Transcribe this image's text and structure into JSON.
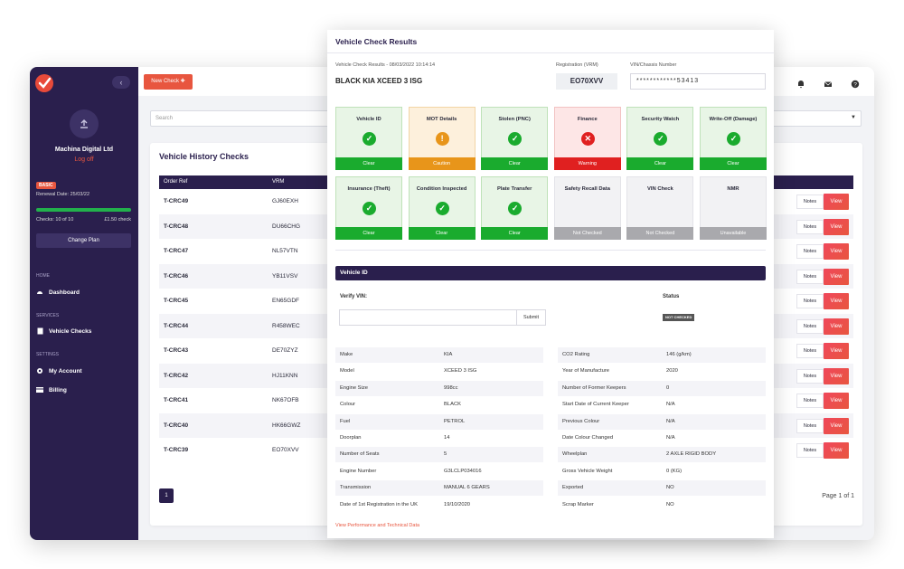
{
  "sidebar": {
    "company": "Machina Digital Ltd",
    "logoff": "Log off",
    "plan_badge": "BASIC",
    "renewal": "Renewal Date: 25/03/22",
    "checks_used": "Checks: 10 of 10",
    "price": "£1.50 check",
    "usage_fraction": 1.0,
    "change_plan": "Change Plan",
    "sections": {
      "home": "HOME",
      "services": "SERVICES",
      "settings": "SETTINGS"
    },
    "items": {
      "dashboard": "Dashboard",
      "vehicle_checks": "Vehicle Checks",
      "my_account": "My Account",
      "billing": "Billing"
    }
  },
  "topbar": {
    "new_check": "New Check"
  },
  "search": {
    "placeholder": "Search"
  },
  "history": {
    "title": "Vehicle History Checks",
    "columns": [
      "Order Ref",
      "VRM"
    ],
    "notes_label": "Notes",
    "view_label": "View",
    "rows": [
      {
        "ref": "T-CRC49",
        "vrm": "GJ60EXH"
      },
      {
        "ref": "T-CRC48",
        "vrm": "DU66CHG"
      },
      {
        "ref": "T-CRC47",
        "vrm": "NL57VTN"
      },
      {
        "ref": "T-CRC46",
        "vrm": "YB11VSV"
      },
      {
        "ref": "T-CRC45",
        "vrm": "EN65GDF"
      },
      {
        "ref": "T-CRC44",
        "vrm": "R458WEC"
      },
      {
        "ref": "T-CRC43",
        "vrm": "DE70ZYZ"
      },
      {
        "ref": "T-CRC42",
        "vrm": "HJ11KNN"
      },
      {
        "ref": "T-CRC41",
        "vrm": "NK67OFB"
      },
      {
        "ref": "T-CRC40",
        "vrm": "HK66GWZ"
      },
      {
        "ref": "T-CRC39",
        "vrm": "EO70XVV"
      }
    ],
    "current_page": "1",
    "page_info": "Page 1 of 1"
  },
  "modal": {
    "title": "Vehicle Check Results",
    "results_meta": "Vehicle Check Results - 08/03/2022 10:14:14",
    "vehicle_name": "BLACK KIA XCEED 3 ISG",
    "reg_label": "Registration (VRM)",
    "reg_value": "EO70XVV",
    "vin_label": "VIN/Chassis Number",
    "vin_value": "************53413",
    "tiles": [
      {
        "label": "Vehicle ID",
        "status": "Clear",
        "color": "green",
        "icon": "check-icon"
      },
      {
        "label": "MOT Details",
        "status": "Caution",
        "color": "orange",
        "icon": "exclamation-icon"
      },
      {
        "label": "Stolen (PNC)",
        "status": "Clear",
        "color": "green",
        "icon": "check-icon"
      },
      {
        "label": "Finance",
        "status": "Warning",
        "color": "red",
        "icon": "cross-icon"
      },
      {
        "label": "Security Watch",
        "status": "Clear",
        "color": "green",
        "icon": "check-icon"
      },
      {
        "label": "Write-Off (Damage)",
        "status": "Clear",
        "color": "green",
        "icon": "check-icon"
      },
      {
        "label": "Insurance (Theft)",
        "status": "Clear",
        "color": "green",
        "icon": "check-icon"
      },
      {
        "label": "Condition Inspected",
        "status": "Clear",
        "color": "green",
        "icon": "check-icon"
      },
      {
        "label": "Plate Transfer",
        "status": "Clear",
        "color": "green",
        "icon": "check-icon"
      },
      {
        "label": "Safety Recall Data",
        "status": "Not Checked",
        "color": "grey",
        "icon": ""
      },
      {
        "label": "VIN Check",
        "status": "Not Checked",
        "color": "grey",
        "icon": ""
      },
      {
        "label": "NMR",
        "status": "Unavailable",
        "color": "grey",
        "icon": ""
      }
    ],
    "section_title": "Vehicle ID",
    "verify_label": "Verify VIN:",
    "status_label": "Status",
    "submit_label": "Submit",
    "status_badge": "NOT CHECKED",
    "specs_left": [
      {
        "k": "Make",
        "v": "KIA"
      },
      {
        "k": "Model",
        "v": "XCEED 3 ISG"
      },
      {
        "k": "Engine Size",
        "v": "998cc"
      },
      {
        "k": "Colour",
        "v": "BLACK"
      },
      {
        "k": "Fuel",
        "v": "PETROL"
      },
      {
        "k": "Doorplan",
        "v": "14"
      },
      {
        "k": "Number of Seats",
        "v": "5"
      },
      {
        "k": "Engine Number",
        "v": "G3LCLP034016"
      },
      {
        "k": "Transmission",
        "v": "MANUAL 6 GEARS"
      },
      {
        "k": "Date of 1st Registration in the UK",
        "v": "19/10/2020"
      }
    ],
    "specs_right": [
      {
        "k": "CO2 Rating",
        "v": "146 (g/km)"
      },
      {
        "k": "Year of Manufacture",
        "v": "2020"
      },
      {
        "k": "Number of Former Keepers",
        "v": "0"
      },
      {
        "k": "Start Date of Current Keeper",
        "v": "N/A"
      },
      {
        "k": "Previous Colour",
        "v": "N/A"
      },
      {
        "k": "Date Colour Changed",
        "v": "N/A"
      },
      {
        "k": "Wheelplan",
        "v": "2 AXLE RIGID BODY"
      },
      {
        "k": "Gross Vehicle Weight",
        "v": "0 (KG)"
      },
      {
        "k": "Exported",
        "v": "NO"
      },
      {
        "k": "Scrap Marker",
        "v": "NO"
      }
    ],
    "perf_link": "View Performance and Technical Data"
  },
  "colors": {
    "sidebar": "#2a1f4d",
    "accent": "#e8563f",
    "clear": "#1aab2e",
    "caution": "#e8951a",
    "warning": "#e02020",
    "not_checked": "#a9a9ad"
  }
}
